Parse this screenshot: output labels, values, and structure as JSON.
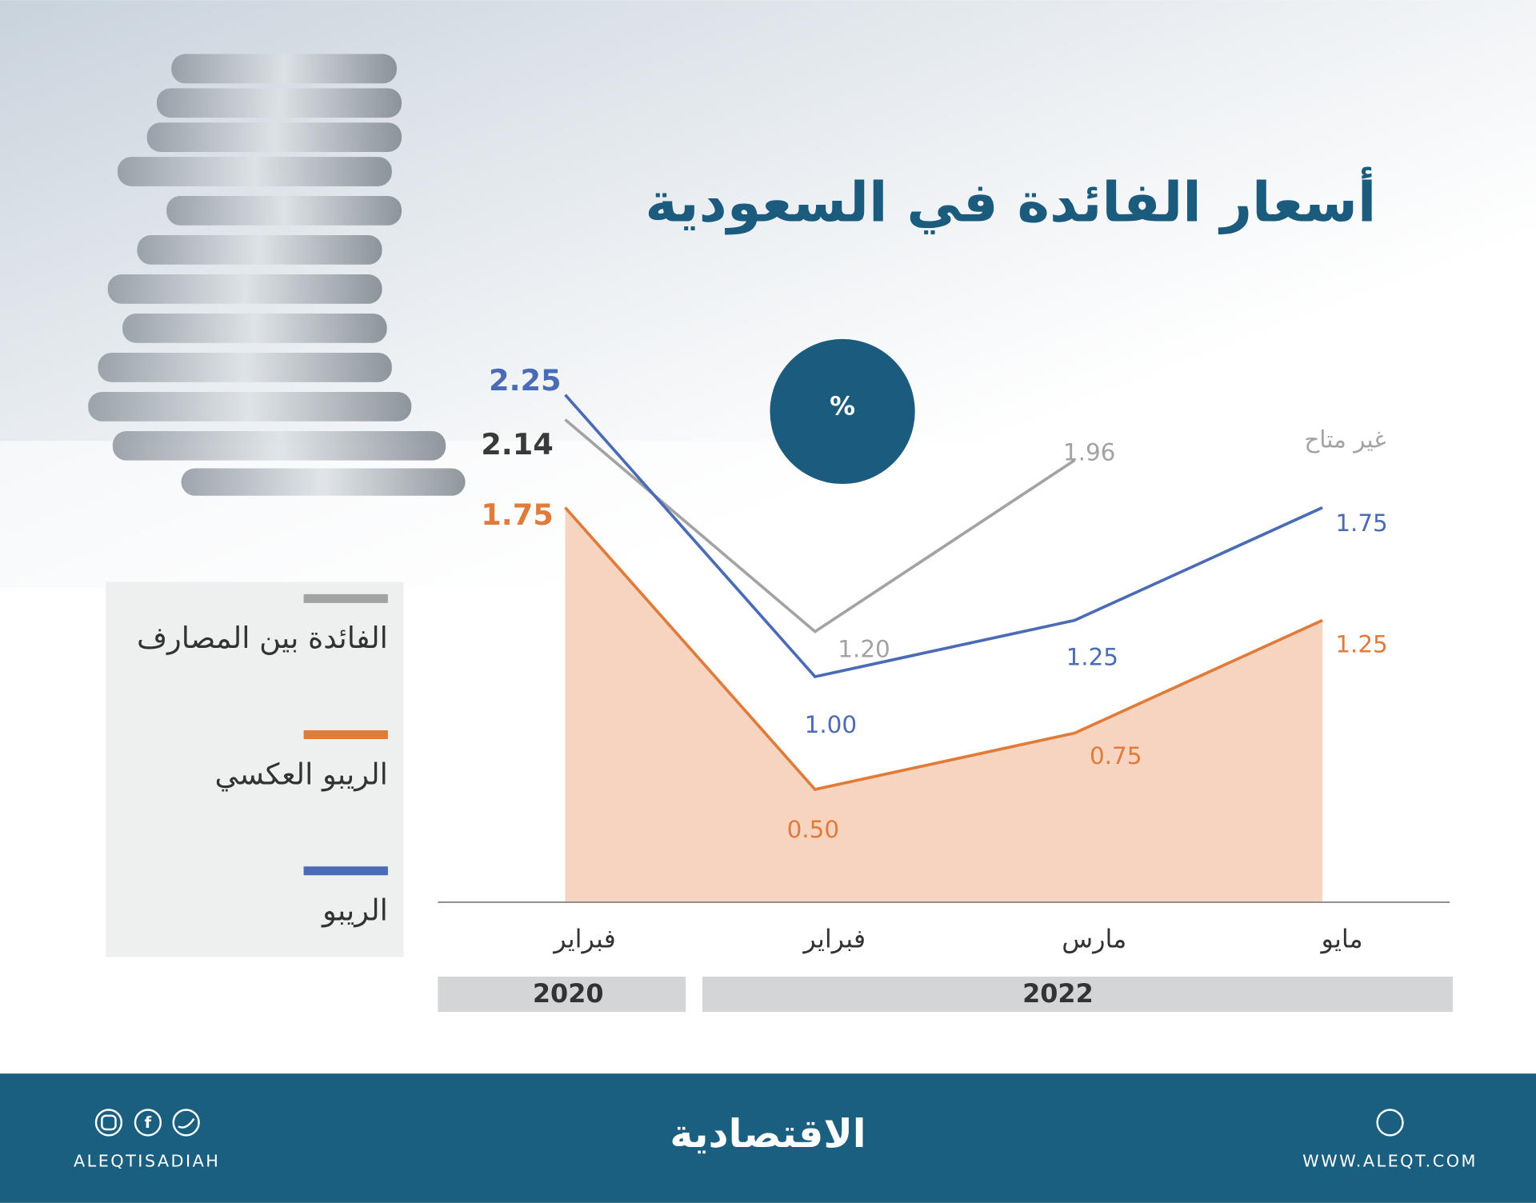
{
  "chart_data": {
    "type": "line",
    "title": "أسعار الفائدة في السعودية",
    "unit": "%",
    "categories": [
      "فبراير",
      "فبراير",
      "مارس",
      "مايو"
    ],
    "year_labels": [
      "2020",
      "2022"
    ],
    "series": [
      {
        "name": "الفائدة بين المصارف",
        "color": "#a3a3a3",
        "values": [
          2.14,
          1.2,
          1.96,
          null
        ],
        "value_labels": [
          "2.14",
          "1.20",
          "1.96",
          "غير متاح"
        ]
      },
      {
        "name": "الريبو العكسي",
        "color": "#e07b39",
        "fill": "#f6d4c0",
        "values": [
          1.75,
          0.5,
          0.75,
          1.25
        ],
        "value_labels": [
          "1.75",
          "0.50",
          "0.75",
          "1.25"
        ]
      },
      {
        "name": "الريبو",
        "color": "#4a6bb5",
        "values": [
          2.25,
          1.0,
          1.25,
          1.75
        ],
        "value_labels": [
          "2.25",
          "1.00",
          "1.25",
          "1.75"
        ]
      }
    ]
  },
  "footer": {
    "social_handle": "ALEQTISADIAH",
    "brand": "الاقتصادية",
    "website": "WWW.ALEQT.COM"
  }
}
